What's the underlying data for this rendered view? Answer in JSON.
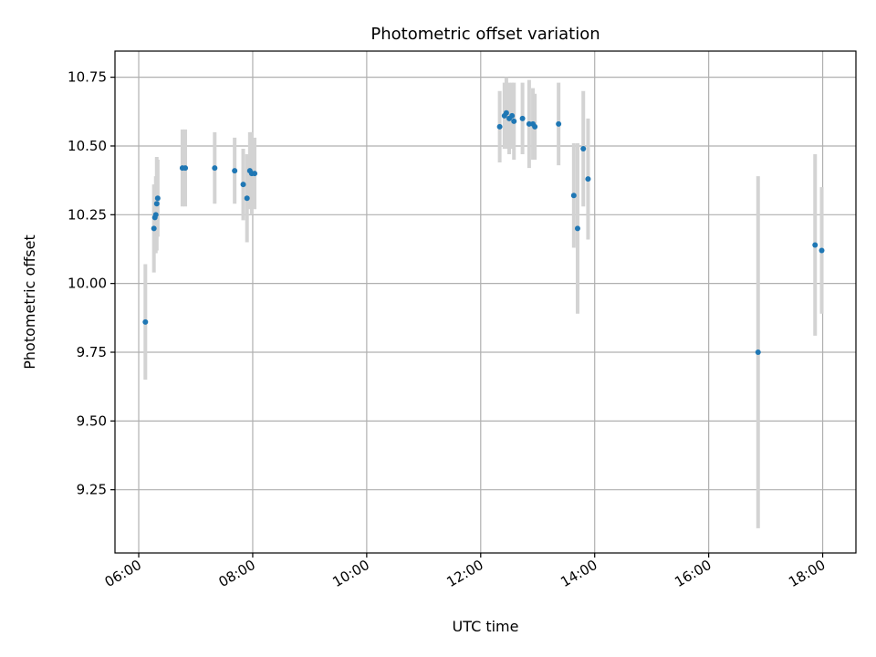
{
  "chart_data": {
    "type": "scatter",
    "title": "Photometric offset variation",
    "xlabel": "UTC time",
    "ylabel": "Photometric offset",
    "x_unit": "hours (UTC)",
    "xlim": [
      "05:35",
      "18:35"
    ],
    "ylim": [
      9.02,
      10.845
    ],
    "grid": true,
    "x_ticks": [
      {
        "value": "06:00",
        "label": "06:00"
      },
      {
        "value": "08:00",
        "label": "08:00"
      },
      {
        "value": "10:00",
        "label": "10:00"
      },
      {
        "value": "12:00",
        "label": "12:00"
      },
      {
        "value": "14:00",
        "label": "14:00"
      },
      {
        "value": "16:00",
        "label": "16:00"
      },
      {
        "value": "18:00",
        "label": "18:00"
      }
    ],
    "y_ticks": [
      {
        "value": 9.25,
        "label": "9.25"
      },
      {
        "value": 9.5,
        "label": "9.50"
      },
      {
        "value": 9.75,
        "label": "9.75"
      },
      {
        "value": 10.0,
        "label": "10.00"
      },
      {
        "value": 10.25,
        "label": "10.25"
      },
      {
        "value": 10.5,
        "label": "10.50"
      },
      {
        "value": 10.75,
        "label": "10.75"
      }
    ],
    "colors": {
      "marker": "#1f77b4",
      "errorbar": "#d3d3d3",
      "grid": "#b0b0b0"
    },
    "points": [
      {
        "x": "06:07",
        "y": 9.86,
        "err": 0.21
      },
      {
        "x": "06:16",
        "y": 10.2,
        "err": 0.16
      },
      {
        "x": "06:17",
        "y": 10.24,
        "err": 0.12
      },
      {
        "x": "06:18",
        "y": 10.25,
        "err": 0.14
      },
      {
        "x": "06:19",
        "y": 10.29,
        "err": 0.17
      },
      {
        "x": "06:20",
        "y": 10.31,
        "err": 0.14
      },
      {
        "x": "06:46",
        "y": 10.42,
        "err": 0.14
      },
      {
        "x": "06:49",
        "y": 10.42,
        "err": 0.14
      },
      {
        "x": "07:20",
        "y": 10.42,
        "err": 0.13
      },
      {
        "x": "07:41",
        "y": 10.41,
        "err": 0.12
      },
      {
        "x": "07:50",
        "y": 10.36,
        "err": 0.13
      },
      {
        "x": "07:54",
        "y": 10.31,
        "err": 0.16
      },
      {
        "x": "07:57",
        "y": 10.41,
        "err": 0.14
      },
      {
        "x": "07:59",
        "y": 10.4,
        "err": 0.15
      },
      {
        "x": "08:02",
        "y": 10.4,
        "err": 0.13
      },
      {
        "x": "12:20",
        "y": 10.57,
        "err": 0.13
      },
      {
        "x": "12:25",
        "y": 10.61,
        "err": 0.12
      },
      {
        "x": "12:27",
        "y": 10.62,
        "err": 0.13
      },
      {
        "x": "12:30",
        "y": 10.6,
        "err": 0.13
      },
      {
        "x": "12:33",
        "y": 10.61,
        "err": 0.12
      },
      {
        "x": "12:35",
        "y": 10.59,
        "err": 0.14
      },
      {
        "x": "12:44",
        "y": 10.6,
        "err": 0.13
      },
      {
        "x": "12:51",
        "y": 10.58,
        "err": 0.16
      },
      {
        "x": "12:55",
        "y": 10.58,
        "err": 0.13
      },
      {
        "x": "12:57",
        "y": 10.57,
        "err": 0.12
      },
      {
        "x": "13:22",
        "y": 10.58,
        "err": 0.15
      },
      {
        "x": "13:38",
        "y": 10.32,
        "err": 0.19
      },
      {
        "x": "13:42",
        "y": 10.2,
        "err": 0.31
      },
      {
        "x": "13:48",
        "y": 10.49,
        "err": 0.21
      },
      {
        "x": "13:53",
        "y": 10.38,
        "err": 0.22
      },
      {
        "x": "16:52",
        "y": 9.75,
        "err": 0.64
      },
      {
        "x": "17:52",
        "y": 10.14,
        "err": 0.33
      },
      {
        "x": "17:59",
        "y": 10.12,
        "err": 0.23
      }
    ]
  }
}
